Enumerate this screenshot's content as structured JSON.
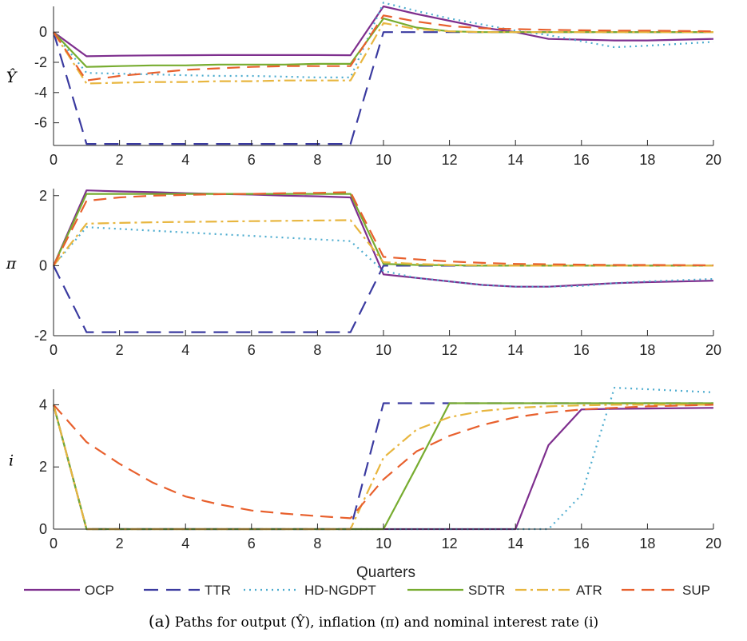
{
  "colors": {
    "OCP": "#7e2f8e",
    "TTR": "#3b3ba0",
    "HD-NGDPT": "#4daccf",
    "SDTR": "#77ac30",
    "ATR": "#e8b63f",
    "SUP": "#e8602d"
  },
  "xlabel": "Quarters",
  "caption": {
    "tag": "(a)",
    "text": " Paths for output (Ŷ), inflation (π) and nominal interest rate (i)"
  },
  "chart_data": [
    {
      "type": "line",
      "ylabel": "Ŷ",
      "xlim": [
        0,
        20
      ],
      "ylim": [
        -7.5,
        1.7
      ],
      "xticks": [
        0,
        2,
        4,
        6,
        8,
        10,
        12,
        14,
        16,
        18,
        20
      ],
      "yticks": [
        0,
        -2,
        -4,
        -6
      ],
      "x": [
        0,
        1,
        2,
        3,
        4,
        5,
        6,
        7,
        8,
        9,
        10,
        11,
        12,
        13,
        14,
        15,
        16,
        17,
        18,
        20
      ],
      "series": [
        {
          "name": "OCP",
          "values": [
            0,
            -1.6,
            -1.56,
            -1.54,
            -1.53,
            -1.52,
            -1.52,
            -1.52,
            -1.52,
            -1.53,
            1.7,
            1.2,
            0.75,
            0.3,
            0,
            -0.45,
            -0.5,
            -0.55,
            -0.55,
            -0.45
          ]
        },
        {
          "name": "TTR",
          "values": [
            0,
            -7.4,
            -7.4,
            -7.4,
            -7.4,
            -7.4,
            -7.4,
            -7.4,
            -7.4,
            -7.4,
            0,
            0,
            0,
            0,
            0,
            0,
            0,
            0,
            0,
            0
          ]
        },
        {
          "name": "HD-NGDPT",
          "values": [
            0,
            -2.7,
            -2.75,
            -2.8,
            -2.85,
            -2.9,
            -2.9,
            -2.95,
            -3.0,
            -3.0,
            1.95,
            1.4,
            0.9,
            0.5,
            0.1,
            -0.2,
            -0.6,
            -1.0,
            -0.9,
            -0.65
          ]
        },
        {
          "name": "SDTR",
          "values": [
            0,
            -2.3,
            -2.25,
            -2.2,
            -2.2,
            -2.15,
            -2.15,
            -2.15,
            -2.1,
            -2.1,
            0.9,
            0.3,
            0.05,
            0,
            0,
            0,
            0,
            0,
            0,
            0
          ]
        },
        {
          "name": "ATR",
          "values": [
            0,
            -3.4,
            -3.35,
            -3.3,
            -3.3,
            -3.25,
            -3.25,
            -3.2,
            -3.2,
            -3.2,
            0.6,
            0.2,
            0.05,
            0,
            0,
            0,
            0,
            0,
            0,
            0
          ]
        },
        {
          "name": "SUP",
          "values": [
            0,
            -3.2,
            -2.9,
            -2.7,
            -2.5,
            -2.4,
            -2.3,
            -2.25,
            -2.25,
            -2.25,
            1.1,
            0.7,
            0.4,
            0.25,
            0.2,
            0.15,
            0.12,
            0.1,
            0.1,
            0.05
          ]
        }
      ]
    },
    {
      "type": "line",
      "ylabel": "π",
      "xlim": [
        0,
        20
      ],
      "ylim": [
        -2,
        2.2
      ],
      "xticks": [
        0,
        2,
        4,
        6,
        8,
        10,
        12,
        14,
        16,
        18,
        20
      ],
      "yticks": [
        2,
        0,
        -2
      ],
      "x": [
        0,
        1,
        2,
        3,
        4,
        5,
        6,
        7,
        8,
        9,
        10,
        11,
        12,
        13,
        14,
        15,
        16,
        17,
        18,
        20
      ],
      "series": [
        {
          "name": "OCP",
          "values": [
            0,
            2.15,
            2.12,
            2.1,
            2.07,
            2.05,
            2.03,
            2.0,
            1.98,
            1.95,
            -0.25,
            -0.35,
            -0.45,
            -0.55,
            -0.6,
            -0.6,
            -0.55,
            -0.5,
            -0.47,
            -0.43
          ]
        },
        {
          "name": "TTR",
          "values": [
            0,
            -1.9,
            -1.9,
            -1.9,
            -1.9,
            -1.9,
            -1.9,
            -1.9,
            -1.9,
            -1.9,
            0,
            0,
            0,
            0,
            0,
            0,
            0,
            0,
            0,
            0
          ]
        },
        {
          "name": "HD-NGDPT",
          "values": [
            0,
            1.1,
            1.05,
            1.0,
            0.95,
            0.9,
            0.85,
            0.8,
            0.75,
            0.7,
            -0.15,
            -0.35,
            -0.45,
            -0.55,
            -0.6,
            -0.6,
            -0.58,
            -0.5,
            -0.45,
            -0.38
          ]
        },
        {
          "name": "SDTR",
          "values": [
            0,
            2.05,
            2.05,
            2.05,
            2.05,
            2.05,
            2.05,
            2.05,
            2.05,
            2.05,
            0.05,
            0.02,
            0.01,
            0,
            0,
            0,
            0,
            0,
            0,
            0
          ]
        },
        {
          "name": "ATR",
          "values": [
            0,
            1.2,
            1.22,
            1.24,
            1.25,
            1.26,
            1.27,
            1.28,
            1.29,
            1.3,
            0.1,
            0.05,
            0.02,
            0.01,
            0,
            0,
            0,
            0,
            0,
            0
          ]
        },
        {
          "name": "SUP",
          "values": [
            0,
            1.85,
            1.95,
            2.0,
            2.02,
            2.04,
            2.05,
            2.07,
            2.08,
            2.1,
            0.25,
            0.18,
            0.12,
            0.08,
            0.05,
            0.04,
            0.03,
            0.02,
            0.02,
            0.01
          ]
        }
      ]
    },
    {
      "type": "line",
      "ylabel": "i",
      "xlim": [
        0,
        20
      ],
      "ylim": [
        0,
        4.5
      ],
      "xticks": [
        0,
        2,
        4,
        6,
        8,
        10,
        12,
        14,
        16,
        18,
        20
      ],
      "yticks": [
        4,
        2,
        0
      ],
      "x": [
        0,
        1,
        2,
        3,
        4,
        5,
        6,
        7,
        8,
        9,
        10,
        11,
        12,
        13,
        14,
        15,
        16,
        17,
        18,
        20
      ],
      "series": [
        {
          "name": "OCP",
          "values": [
            4,
            0,
            0,
            0,
            0,
            0,
            0,
            0,
            0,
            0,
            0,
            0,
            0,
            0,
            0,
            2.7,
            3.85,
            3.87,
            3.88,
            3.9
          ]
        },
        {
          "name": "TTR",
          "values": [
            4,
            0,
            0,
            0,
            0,
            0,
            0,
            0,
            0,
            0,
            4.05,
            4.05,
            4.05,
            4.05,
            4.05,
            4.05,
            4.05,
            4.05,
            4.05,
            4.05
          ]
        },
        {
          "name": "HD-NGDPT",
          "values": [
            4,
            0,
            0,
            0,
            0,
            0,
            0,
            0,
            0,
            0,
            0,
            0,
            0,
            0,
            0,
            0,
            1.1,
            4.55,
            4.5,
            4.4
          ]
        },
        {
          "name": "SDTR",
          "values": [
            4,
            0,
            0,
            0,
            0,
            0,
            0,
            0,
            0,
            0,
            0,
            2.0,
            4.05,
            4.05,
            4.05,
            4.05,
            4.05,
            4.05,
            4.05,
            4.05
          ]
        },
        {
          "name": "ATR",
          "values": [
            4,
            0,
            0,
            0,
            0,
            0,
            0,
            0,
            0,
            0,
            2.3,
            3.2,
            3.6,
            3.8,
            3.9,
            3.95,
            3.98,
            4.0,
            4.0,
            4.0
          ]
        },
        {
          "name": "SUP",
          "values": [
            4,
            2.8,
            2.1,
            1.5,
            1.05,
            0.8,
            0.6,
            0.5,
            0.42,
            0.35,
            1.6,
            2.5,
            3.0,
            3.35,
            3.6,
            3.75,
            3.85,
            3.9,
            3.95,
            4.0
          ]
        }
      ]
    }
  ]
}
